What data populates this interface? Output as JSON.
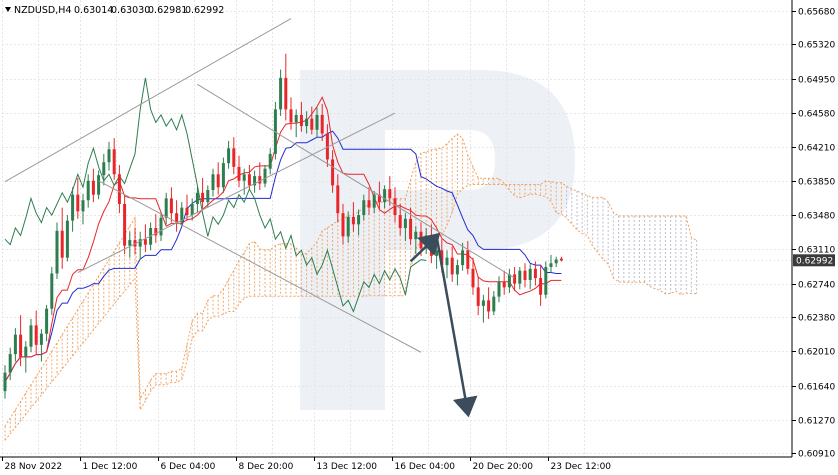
{
  "header": {
    "symbol": "NZDUSD,H4",
    "open": "0.63014",
    "high": "0.63030",
    "low": "0.62981",
    "close": "0.62992"
  },
  "colors": {
    "bull": "#2e7d4f",
    "bear": "#e8262a",
    "tenkan": "#e8262a",
    "kijun": "#1f2bd0",
    "chikou": "#2e7d4f",
    "cloud": "#f0a060",
    "cloud_future": "#b8b8c8",
    "channel": "#9a9a9a",
    "arrow": "#3b4d5c",
    "grid": "#e6e6e6",
    "price_tag": "#3a3a3a",
    "watermark": "#dfe6ef"
  },
  "chart_data": {
    "type": "candlestick",
    "symbol": "NZDUSD",
    "timeframe": "H4",
    "ylim": [
      0.6087,
      0.658
    ],
    "y_ticks": [
      "0.65680",
      "0.65320",
      "0.64950",
      "0.64580",
      "0.64210",
      "0.63850",
      "0.63480",
      "0.63110",
      "0.62740",
      "0.62380",
      "0.62010",
      "0.61640",
      "0.61270",
      "0.60910"
    ],
    "x_ticks": [
      "28 Nov 2022",
      "1 Dec 12:00",
      "6 Dec 04:00",
      "8 Dec 20:00",
      "13 Dec 12:00",
      "16 Dec 04:00",
      "20 Dec 20:00",
      "23 Dec 12:00"
    ],
    "current_price": "0.62992",
    "bar_count": 120,
    "candles": [
      [
        0.6158,
        0.6186,
        0.615,
        0.6178
      ],
      [
        0.6178,
        0.6205,
        0.617,
        0.6198
      ],
      [
        0.6198,
        0.6226,
        0.619,
        0.6219
      ],
      [
        0.6219,
        0.624,
        0.6185,
        0.6195
      ],
      [
        0.6195,
        0.6212,
        0.6178,
        0.6206
      ],
      [
        0.6206,
        0.6236,
        0.62,
        0.6229
      ],
      [
        0.6229,
        0.6245,
        0.6198,
        0.6208
      ],
      [
        0.6208,
        0.6225,
        0.619,
        0.622
      ],
      [
        0.622,
        0.6251,
        0.6212,
        0.6247
      ],
      [
        0.6247,
        0.6292,
        0.624,
        0.6285
      ],
      [
        0.6285,
        0.634,
        0.6279,
        0.6331
      ],
      [
        0.6331,
        0.6356,
        0.629,
        0.6302
      ],
      [
        0.6302,
        0.6348,
        0.6298,
        0.6342
      ],
      [
        0.6342,
        0.6378,
        0.633,
        0.637
      ],
      [
        0.637,
        0.6388,
        0.6344,
        0.6352
      ],
      [
        0.6352,
        0.6371,
        0.6338,
        0.6364
      ],
      [
        0.6364,
        0.6392,
        0.6356,
        0.6385
      ],
      [
        0.6385,
        0.6398,
        0.6362,
        0.637
      ],
      [
        0.637,
        0.6396,
        0.6365,
        0.6391
      ],
      [
        0.6391,
        0.6414,
        0.638,
        0.6405
      ],
      [
        0.6405,
        0.6427,
        0.6396,
        0.6419
      ],
      [
        0.6419,
        0.6431,
        0.6386,
        0.6392
      ],
      [
        0.6392,
        0.6402,
        0.635,
        0.636
      ],
      [
        0.636,
        0.6368,
        0.6306,
        0.6315
      ],
      [
        0.6315,
        0.633,
        0.6302,
        0.6321
      ],
      [
        0.6321,
        0.6334,
        0.6306,
        0.6314
      ],
      [
        0.6314,
        0.633,
        0.63,
        0.6322
      ],
      [
        0.6322,
        0.6338,
        0.6308,
        0.6316
      ],
      [
        0.6316,
        0.634,
        0.631,
        0.6334
      ],
      [
        0.6334,
        0.6349,
        0.6318,
        0.6326
      ],
      [
        0.6326,
        0.635,
        0.632,
        0.6345
      ],
      [
        0.6345,
        0.6372,
        0.6338,
        0.6366
      ],
      [
        0.6366,
        0.6378,
        0.634,
        0.635
      ],
      [
        0.635,
        0.6364,
        0.633,
        0.634
      ],
      [
        0.634,
        0.6362,
        0.6336,
        0.6356
      ],
      [
        0.6356,
        0.637,
        0.6342,
        0.6348
      ],
      [
        0.6348,
        0.6366,
        0.6342,
        0.636
      ],
      [
        0.636,
        0.6378,
        0.635,
        0.6372
      ],
      [
        0.6372,
        0.6388,
        0.6355,
        0.6362
      ],
      [
        0.6362,
        0.638,
        0.6356,
        0.6375
      ],
      [
        0.6375,
        0.6398,
        0.6368,
        0.6392
      ],
      [
        0.6392,
        0.6405,
        0.637,
        0.6378
      ],
      [
        0.6378,
        0.641,
        0.6372,
        0.6404
      ],
      [
        0.6404,
        0.6428,
        0.6398,
        0.642
      ],
      [
        0.642,
        0.6432,
        0.6392,
        0.64
      ],
      [
        0.64,
        0.6412,
        0.6378,
        0.6385
      ],
      [
        0.6385,
        0.6398,
        0.637,
        0.6392
      ],
      [
        0.6392,
        0.6402,
        0.6376,
        0.638
      ],
      [
        0.638,
        0.6396,
        0.6372,
        0.639
      ],
      [
        0.639,
        0.6405,
        0.6375,
        0.6382
      ],
      [
        0.6382,
        0.6402,
        0.6378,
        0.6398
      ],
      [
        0.6398,
        0.642,
        0.6392,
        0.6414
      ],
      [
        0.6414,
        0.647,
        0.6408,
        0.6462
      ],
      [
        0.6462,
        0.6505,
        0.6455,
        0.6496
      ],
      [
        0.6496,
        0.6522,
        0.645,
        0.6462
      ],
      [
        0.6462,
        0.6475,
        0.644,
        0.6448
      ],
      [
        0.6448,
        0.6462,
        0.6432,
        0.6456
      ],
      [
        0.6456,
        0.647,
        0.6438,
        0.6444
      ],
      [
        0.6444,
        0.646,
        0.6436,
        0.6452
      ],
      [
        0.6452,
        0.6465,
        0.6435,
        0.644
      ],
      [
        0.644,
        0.6464,
        0.6432,
        0.6456
      ],
      [
        0.6456,
        0.6468,
        0.6428,
        0.6436
      ],
      [
        0.6436,
        0.6446,
        0.64,
        0.6408
      ],
      [
        0.6408,
        0.6418,
        0.6372,
        0.638
      ],
      [
        0.638,
        0.6392,
        0.634,
        0.635
      ],
      [
        0.635,
        0.636,
        0.6316,
        0.6325
      ],
      [
        0.6325,
        0.6352,
        0.6318,
        0.6346
      ],
      [
        0.6346,
        0.6362,
        0.633,
        0.6338
      ],
      [
        0.6338,
        0.6354,
        0.6326,
        0.6348
      ],
      [
        0.6348,
        0.637,
        0.6342,
        0.6364
      ],
      [
        0.6364,
        0.6378,
        0.6348,
        0.6356
      ],
      [
        0.6356,
        0.6374,
        0.635,
        0.637
      ],
      [
        0.637,
        0.6384,
        0.6354,
        0.6362
      ],
      [
        0.6362,
        0.638,
        0.6355,
        0.6376
      ],
      [
        0.6376,
        0.639,
        0.6358,
        0.6366
      ],
      [
        0.6366,
        0.6378,
        0.634,
        0.6348
      ],
      [
        0.6348,
        0.636,
        0.6326,
        0.6334
      ],
      [
        0.6334,
        0.635,
        0.632,
        0.6344
      ],
      [
        0.6344,
        0.6356,
        0.6316,
        0.6322
      ],
      [
        0.6322,
        0.6336,
        0.6306,
        0.633
      ],
      [
        0.633,
        0.634,
        0.6304,
        0.6312
      ],
      [
        0.6312,
        0.6334,
        0.6306,
        0.6326
      ],
      [
        0.6326,
        0.6338,
        0.6296,
        0.6304
      ],
      [
        0.6304,
        0.6318,
        0.629,
        0.631
      ],
      [
        0.631,
        0.6322,
        0.6286,
        0.6294
      ],
      [
        0.6294,
        0.631,
        0.628,
        0.6302
      ],
      [
        0.6302,
        0.6314,
        0.6276,
        0.6284
      ],
      [
        0.6284,
        0.63,
        0.6272,
        0.6294
      ],
      [
        0.6294,
        0.6318,
        0.6288,
        0.631
      ],
      [
        0.631,
        0.632,
        0.6284,
        0.629
      ],
      [
        0.629,
        0.6302,
        0.6262,
        0.627
      ],
      [
        0.627,
        0.6282,
        0.624,
        0.625
      ],
      [
        0.625,
        0.6262,
        0.6232,
        0.6256
      ],
      [
        0.6256,
        0.627,
        0.6236,
        0.6244
      ],
      [
        0.6244,
        0.6266,
        0.624,
        0.626
      ],
      [
        0.626,
        0.6282,
        0.6254,
        0.6276
      ],
      [
        0.6276,
        0.6288,
        0.6262,
        0.627
      ],
      [
        0.627,
        0.629,
        0.6264,
        0.6284
      ],
      [
        0.6284,
        0.6292,
        0.6266,
        0.6274
      ],
      [
        0.6274,
        0.6292,
        0.6268,
        0.6288
      ],
      [
        0.6288,
        0.6296,
        0.627,
        0.6278
      ],
      [
        0.6278,
        0.6295,
        0.6268,
        0.629
      ],
      [
        0.629,
        0.6298,
        0.6272,
        0.628
      ],
      [
        0.628,
        0.6294,
        0.625,
        0.6262
      ],
      [
        0.6262,
        0.6298,
        0.6258,
        0.6292
      ],
      [
        0.6292,
        0.6305,
        0.6286,
        0.6296
      ],
      [
        0.6296,
        0.6303,
        0.6292,
        0.63
      ],
      [
        0.6301,
        0.6303,
        0.6298,
        0.6299
      ]
    ],
    "channel_lines": [
      {
        "name": "upper-channel-line",
        "x1": 0,
        "y1": 0.6384,
        "x2": 55,
        "y2": 0.656
      },
      {
        "name": "lower-channel-line",
        "x1": 14,
        "y1": 0.6286,
        "x2": 75,
        "y2": 0.6458
      },
      {
        "name": "descending-upper-line",
        "x1": 37,
        "y1": 0.6489,
        "x2": 98,
        "y2": 0.628
      },
      {
        "name": "descending-lower-line",
        "x1": 18,
        "y1": 0.6385,
        "x2": 80,
        "y2": 0.62
      }
    ],
    "forecast_path": [
      [
        78,
        0.6298
      ],
      [
        83,
        0.6325
      ],
      [
        89,
        0.6135
      ]
    ]
  }
}
